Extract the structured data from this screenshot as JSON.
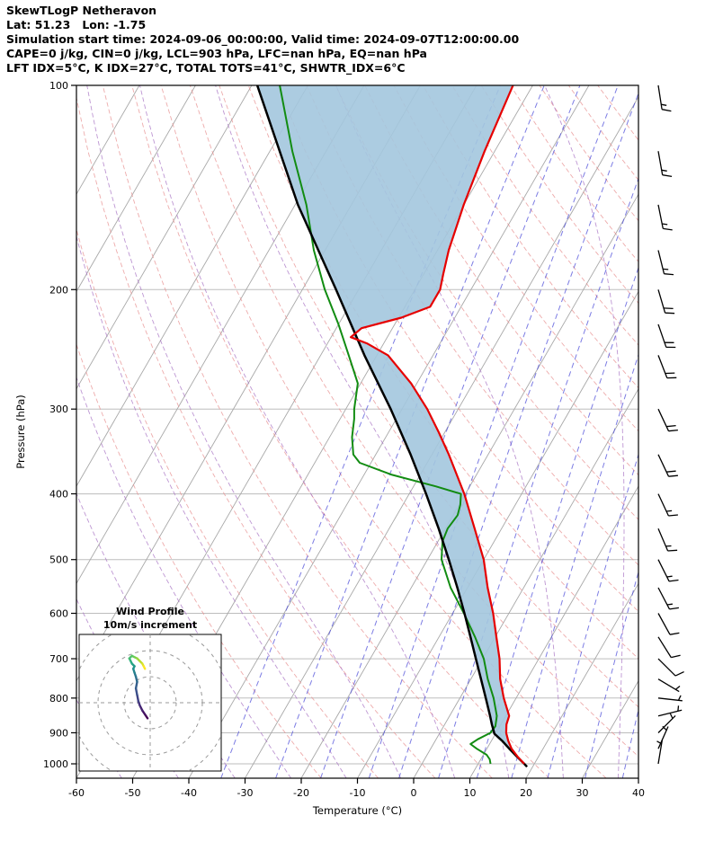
{
  "header": {
    "title": "SkewTLogP Netheravon",
    "location": "Lat: 51.23   Lon: -1.75",
    "times": "Simulation start time: 2024-09-06_00:00:00, Valid time: 2024-09-07T12:00:00.00",
    "indices1": "CAPE=0 j/kg, CIN=0 j/kg, LCL=903 hPa, LFC=nan hPa, EQ=nan hPa",
    "indices2": "LFT IDX=5°C, K IDX=27°C, TOTAL TOTS=41°C, SHWTR_IDX=6°C"
  },
  "chart_data": {
    "type": "line",
    "variant": "Skew-T Log-P atmospheric sounding",
    "title": "SkewTLogP Netheravon",
    "xlabel": "Temperature (°C)",
    "ylabel": "Pressure (hPa)",
    "xlim": [
      -60,
      40
    ],
    "x_ticks": [
      -60,
      -50,
      -40,
      -30,
      -20,
      -10,
      0,
      10,
      20,
      30,
      40
    ],
    "pressure_ticks": [
      100,
      200,
      300,
      400,
      500,
      600,
      700,
      800,
      900,
      1000
    ],
    "pressure_range": [
      1050,
      100
    ],
    "skew_ratio": 0.577,
    "grid": true,
    "series": [
      {
        "name": "temperature",
        "color": "#e60000",
        "width": 2.2,
        "points": [
          [
            1000,
            18.2
          ],
          [
            975,
            16.2
          ],
          [
            950,
            14.4
          ],
          [
            925,
            13.0
          ],
          [
            900,
            11.8
          ],
          [
            875,
            11.0
          ],
          [
            850,
            10.6
          ],
          [
            800,
            7.8
          ],
          [
            750,
            5.2
          ],
          [
            700,
            3.0
          ],
          [
            650,
            0.2
          ],
          [
            600,
            -2.8
          ],
          [
            550,
            -6.4
          ],
          [
            500,
            -10.0
          ],
          [
            450,
            -14.8
          ],
          [
            400,
            -20.2
          ],
          [
            350,
            -27.0
          ],
          [
            325,
            -31.0
          ],
          [
            300,
            -35.5
          ],
          [
            275,
            -41.0
          ],
          [
            250,
            -48.0
          ],
          [
            240,
            -53.0
          ],
          [
            235,
            -56.5
          ],
          [
            228,
            -55.5
          ],
          [
            220,
            -49.5
          ],
          [
            212,
            -45.5
          ],
          [
            200,
            -45.5
          ],
          [
            190,
            -46.5
          ],
          [
            175,
            -48.0
          ],
          [
            150,
            -50.0
          ],
          [
            125,
            -51.8
          ],
          [
            100,
            -53.5
          ]
        ]
      },
      {
        "name": "dewpoint",
        "color": "#128c12",
        "width": 2.0,
        "points": [
          [
            1000,
            12.2
          ],
          [
            985,
            11.6
          ],
          [
            970,
            10.6
          ],
          [
            950,
            8.2
          ],
          [
            935,
            6.6
          ],
          [
            920,
            7.4
          ],
          [
            900,
            9.0
          ],
          [
            880,
            9.2
          ],
          [
            850,
            8.4
          ],
          [
            800,
            6.0
          ],
          [
            750,
            3.0
          ],
          [
            700,
            0.2
          ],
          [
            650,
            -3.6
          ],
          [
            600,
            -8.0
          ],
          [
            550,
            -13.0
          ],
          [
            500,
            -17.5
          ],
          [
            470,
            -19.2
          ],
          [
            450,
            -19.6
          ],
          [
            430,
            -19.2
          ],
          [
            415,
            -19.8
          ],
          [
            400,
            -20.8
          ],
          [
            390,
            -26.0
          ],
          [
            375,
            -35.0
          ],
          [
            360,
            -42.0
          ],
          [
            350,
            -44.0
          ],
          [
            330,
            -46.0
          ],
          [
            310,
            -47.5
          ],
          [
            300,
            -48.5
          ],
          [
            275,
            -50.5
          ],
          [
            250,
            -55.0
          ],
          [
            225,
            -60.0
          ],
          [
            200,
            -66.0
          ],
          [
            175,
            -72.0
          ],
          [
            150,
            -78.0
          ],
          [
            125,
            -86.0
          ],
          [
            100,
            -95.0
          ]
        ]
      },
      {
        "name": "parcel",
        "color": "#000000",
        "width": 2.5,
        "points": [
          [
            1010,
            19.0
          ],
          [
            1000,
            18.2
          ],
          [
            975,
            16.1
          ],
          [
            950,
            14.0
          ],
          [
            925,
            11.9
          ],
          [
            903,
            9.8
          ],
          [
            875,
            8.4
          ],
          [
            850,
            7.2
          ],
          [
            800,
            4.6
          ],
          [
            750,
            1.8
          ],
          [
            700,
            -1.2
          ],
          [
            650,
            -4.4
          ],
          [
            600,
            -7.9
          ],
          [
            550,
            -11.8
          ],
          [
            500,
            -16.2
          ],
          [
            450,
            -21.2
          ],
          [
            400,
            -27.0
          ],
          [
            350,
            -33.8
          ],
          [
            300,
            -42.0
          ],
          [
            250,
            -52.2
          ],
          [
            200,
            -64.0
          ],
          [
            150,
            -79.5
          ],
          [
            100,
            -99.0
          ]
        ]
      }
    ],
    "shaded_area": {
      "between": [
        "parcel",
        "temperature"
      ],
      "color": "#a3c6de",
      "opacity": 0.9
    },
    "background_lines": {
      "isobars": {
        "color": "#bdbdbd",
        "style": "solid"
      },
      "isotherms": {
        "color": "#a8a8a8",
        "from": -120,
        "to": 40,
        "step": 10,
        "style": "solid"
      },
      "dry_adiabats": {
        "color": "#e89090",
        "theta_from": -20,
        "theta_to": 180,
        "step": 10,
        "style": "dashed"
      },
      "moist_adiabats": {
        "color": "#a873c4",
        "start_temp_from": -55,
        "start_temp_to": 35,
        "step": 10,
        "style": "dashed"
      },
      "mixing_ratio": {
        "color": "#4646d8",
        "values_g_kg": [
          0.2,
          0.5,
          1,
          2,
          3,
          5,
          8,
          12,
          18,
          27,
          40
        ],
        "style": "dashed"
      }
    },
    "winds": [
      {
        "p": 1000,
        "u": -1.0,
        "v": -6.0
      },
      {
        "p": 950,
        "u": -2.0,
        "v": -4.5
      },
      {
        "p": 900,
        "u": -3.0,
        "v": -3.0
      },
      {
        "p": 850,
        "u": -4.0,
        "v": -1.0
      },
      {
        "p": 800,
        "u": -4.5,
        "v": 0.5
      },
      {
        "p": 750,
        "u": -5.0,
        "v": 3.0
      },
      {
        "p": 700,
        "u": -5.5,
        "v": 5.5
      },
      {
        "p": 650,
        "u": -5.0,
        "v": 8.0
      },
      {
        "p": 600,
        "u": -5.5,
        "v": 10.0
      },
      {
        "p": 550,
        "u": -6.0,
        "v": 11.5
      },
      {
        "p": 500,
        "u": -6.5,
        "v": 13.0
      },
      {
        "p": 450,
        "u": -6.0,
        "v": 14.0
      },
      {
        "p": 400,
        "u": -7.0,
        "v": 15.0
      },
      {
        "p": 350,
        "u": -7.5,
        "v": 16.0
      },
      {
        "p": 300,
        "u": -8.0,
        "v": 17.0
      },
      {
        "p": 250,
        "u": -7.0,
        "v": 18.0
      },
      {
        "p": 225,
        "u": -6.0,
        "v": 17.5
      },
      {
        "p": 200,
        "u": -5.0,
        "v": 17.0
      },
      {
        "p": 175,
        "u": -4.0,
        "v": 16.0
      },
      {
        "p": 150,
        "u": -3.0,
        "v": 15.0
      },
      {
        "p": 125,
        "u": -2.5,
        "v": 14.0
      },
      {
        "p": 100,
        "u": -2.0,
        "v": 13.0
      }
    ],
    "wind_units": "m/s",
    "hodograph": {
      "title_line1": "Wind Profile",
      "title_line2": "10m/s increment",
      "ring_increment_ms": 10,
      "colormap": "viridis (purple = low level, yellow = high level)",
      "trace_source": "winds"
    }
  }
}
